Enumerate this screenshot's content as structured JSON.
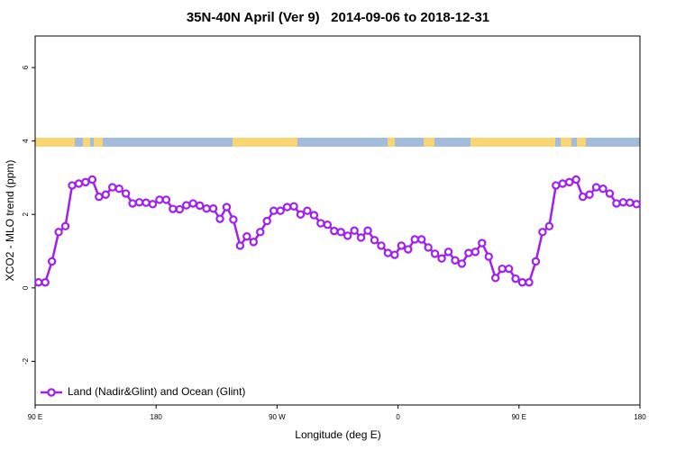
{
  "chart_data": {
    "type": "line",
    "title": "35N-40N April (Ver 9)   2014-09-06 to 2018-12-31",
    "x_label": "Longitude (deg E)",
    "y_label": "XCO2 - MLO trend (ppm)",
    "xlim": [
      90,
      540
    ],
    "xticks": [
      {
        "value": 90,
        "label": "90 E"
      },
      {
        "value": 180,
        "label": "180"
      },
      {
        "value": 270,
        "label": "90 W"
      },
      {
        "value": 360,
        "label": "0"
      },
      {
        "value": 450,
        "label": "90 E"
      },
      {
        "value": 540,
        "label": "180"
      }
    ],
    "ylim": [
      -3.19,
      6.86
    ],
    "yticks": [
      -2,
      0,
      2,
      4,
      6
    ],
    "grid": false,
    "legend": "bottom-left",
    "x": [
      92.5,
      97.5,
      102.5,
      107.5,
      112.5,
      117.5,
      122.5,
      127.5,
      132.5,
      137.5,
      142.5,
      147.5,
      152.5,
      157.5,
      162.5,
      167.5,
      172.5,
      177.5,
      182.5,
      187.5,
      192.5,
      197.5,
      202.5,
      207.5,
      212.5,
      217.5,
      222.5,
      227.5,
      232.5,
      237.5,
      242.5,
      247.5,
      252.5,
      257.5,
      262.5,
      267.5,
      272.5,
      277.5,
      282.5,
      287.5,
      292.5,
      297.5,
      302.5,
      307.5,
      312.5,
      317.5,
      322.5,
      327.5,
      332.5,
      337.5,
      342.5,
      347.5,
      352.5,
      357.5,
      362.5,
      367.5,
      372.5,
      377.5,
      382.5,
      387.5,
      392.5,
      397.5,
      402.5,
      407.5,
      412.5,
      417.5,
      422.5,
      427.5,
      432.5,
      437.5,
      442.5,
      447.5,
      452.5,
      457.5,
      462.5,
      467.5,
      472.5,
      477.5,
      482.5,
      487.5,
      492.5,
      497.5,
      502.5,
      507.5,
      512.5,
      517.5,
      522.5,
      527.5,
      532.5,
      537.5
    ],
    "series": [
      {
        "name": "Land (Nadir&Glint) and Ocean (Glint)",
        "color": "#a020f0",
        "values": [
          0.15,
          0.15,
          0.72,
          1.52,
          1.68,
          2.79,
          2.84,
          2.88,
          2.95,
          2.48,
          2.54,
          2.74,
          2.7,
          2.57,
          2.3,
          2.33,
          2.32,
          2.28,
          2.4,
          2.4,
          2.15,
          2.14,
          2.25,
          2.3,
          2.24,
          2.16,
          2.16,
          1.88,
          2.2,
          1.86,
          1.15,
          1.4,
          1.25,
          1.52,
          1.82,
          2.1,
          2.1,
          2.2,
          2.22,
          2.0,
          2.1,
          1.98,
          1.76,
          1.72,
          1.55,
          1.52,
          1.42,
          1.56,
          1.37,
          1.56,
          1.3,
          1.15,
          0.95,
          0.9,
          1.15,
          1.05,
          1.32,
          1.32,
          1.1,
          0.93,
          0.8,
          0.98,
          0.75,
          0.66,
          0.95,
          0.98,
          1.22,
          0.85,
          0.27,
          0.52,
          0.52,
          0.25,
          0.15,
          0.15,
          0.72,
          1.52,
          1.68,
          2.79,
          2.84,
          2.88,
          2.95,
          2.48,
          2.54,
          2.74,
          2.7,
          2.57,
          2.3,
          2.33,
          2.32,
          2.28
        ]
      }
    ]
  }
}
